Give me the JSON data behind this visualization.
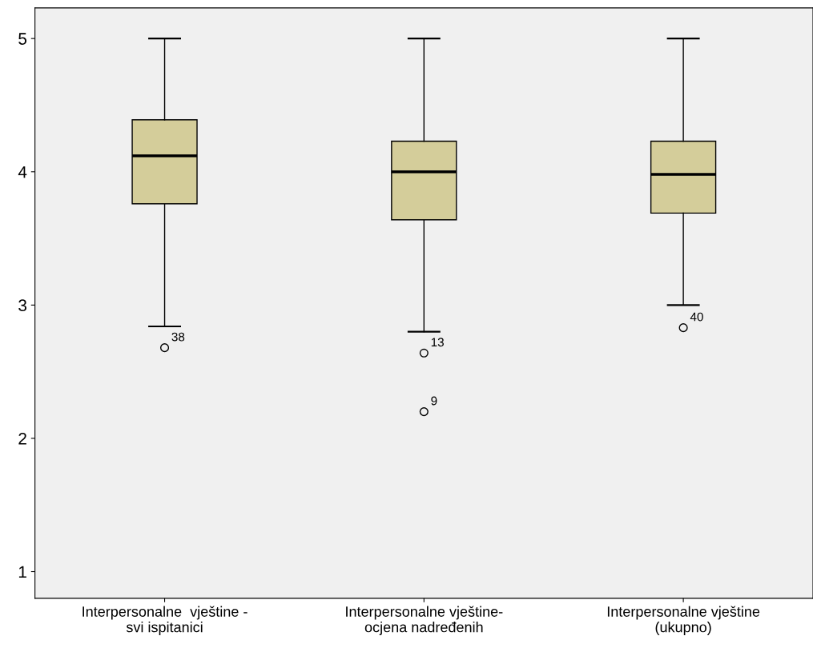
{
  "chart_data": {
    "type": "box",
    "categories": [
      "Interpersonalne  vještine -\nsvi ispitanici",
      "Interpersonalne vještine-\nocjena nadređenih",
      "Interpersonalne vještine\n(ukupno)"
    ],
    "boxes": [
      {
        "low": 2.84,
        "q1": 3.76,
        "median": 4.12,
        "q3": 4.39,
        "high": 5.0,
        "outliers": [
          2.68
        ]
      },
      {
        "low": 2.8,
        "q1": 3.64,
        "median": 4.0,
        "q3": 4.23,
        "high": 5.0,
        "outliers": [
          2.64,
          2.2
        ]
      },
      {
        "low": 3.0,
        "q1": 3.69,
        "median": 3.98,
        "q3": 4.23,
        "high": 5.0,
        "outliers": [
          2.83
        ]
      }
    ],
    "color": "#d4cd9a",
    "ylim": [
      0.8,
      5.23
    ],
    "yticks": [
      1,
      2,
      3,
      4,
      5
    ],
    "grid": false,
    "annotations": [
      "38",
      "13",
      "9",
      "40"
    ]
  }
}
